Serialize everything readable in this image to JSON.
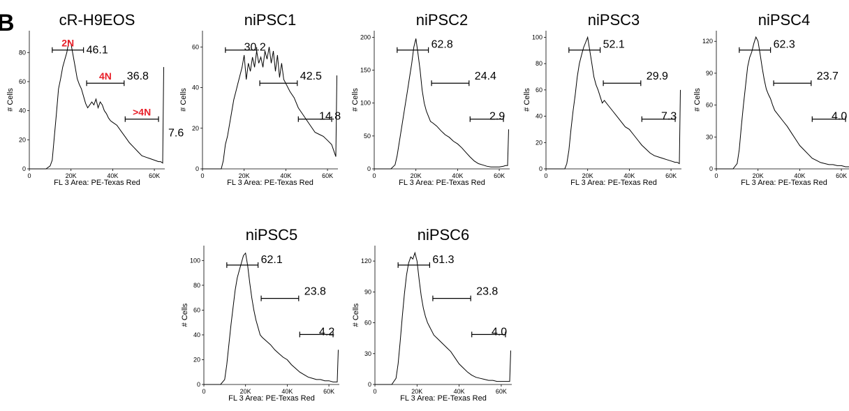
{
  "figure": {
    "panel_letter": "B",
    "label_color": "#e8202a",
    "line_color": "#000000"
  },
  "chart_data": [
    {
      "type": "line",
      "title": "cR-H9EOS",
      "xlabel": "FL 3 Area: PE-Texas Red",
      "ylabel": "# Cells",
      "xlim": [
        0,
        65000
      ],
      "ylim": [
        0,
        95
      ],
      "xticks": [
        {
          "v": 0,
          "t": "0"
        },
        {
          "v": 20000,
          "t": "20K"
        },
        {
          "v": 40000,
          "t": "40K"
        },
        {
          "v": 60000,
          "t": "60K"
        }
      ],
      "yticks": [
        {
          "v": 0,
          "t": "0"
        },
        {
          "v": 20,
          "t": "20"
        },
        {
          "v": 40,
          "t": "40"
        },
        {
          "v": 60,
          "t": "60"
        },
        {
          "v": 80,
          "t": "80"
        }
      ],
      "x": [
        0,
        8000,
        10000,
        11000,
        12000,
        13000,
        14000,
        15000,
        16000,
        17000,
        18000,
        19000,
        20000,
        21000,
        22000,
        23000,
        24000,
        25000,
        26000,
        27000,
        28000,
        29000,
        30000,
        31000,
        32000,
        33000,
        34000,
        35000,
        36000,
        37000,
        38000,
        39000,
        40000,
        42000,
        44000,
        46000,
        48000,
        50000,
        52000,
        54000,
        56000,
        58000,
        60000,
        62000,
        63000,
        64000,
        64500
      ],
      "y": [
        0,
        0,
        2,
        6,
        22,
        38,
        55,
        62,
        70,
        75,
        80,
        88,
        86,
        78,
        70,
        62,
        58,
        55,
        50,
        45,
        42,
        44,
        46,
        44,
        48,
        42,
        46,
        44,
        40,
        38,
        35,
        33,
        32,
        30,
        26,
        22,
        18,
        15,
        12,
        9,
        8,
        7,
        6,
        5,
        5,
        4,
        70
      ],
      "gates": [
        {
          "name": "2N",
          "value": "46.1",
          "range": [
            11000,
            26000
          ],
          "level": 81
        },
        {
          "name": "4N",
          "value": "36.8",
          "range": [
            27500,
            45500
          ],
          "level": 57
        },
        {
          "name": ">4N",
          "value": "7.6",
          "range": [
            46000,
            62000
          ],
          "level": 33
        }
      ]
    },
    {
      "type": "line",
      "title": "niPSC1",
      "xlabel": "FL 3 Area: PE-Texas Red",
      "ylabel": "# Cells",
      "xlim": [
        0,
        65000
      ],
      "ylim": [
        0,
        68
      ],
      "xticks": [
        {
          "v": 0,
          "t": "0"
        },
        {
          "v": 20000,
          "t": "20K"
        },
        {
          "v": 40000,
          "t": "40K"
        },
        {
          "v": 60000,
          "t": "60K"
        }
      ],
      "yticks": [
        {
          "v": 0,
          "t": "0"
        },
        {
          "v": 20,
          "t": "20"
        },
        {
          "v": 40,
          "t": "40"
        },
        {
          "v": 60,
          "t": "60"
        }
      ],
      "x": [
        0,
        9000,
        10000,
        11000,
        12000,
        13000,
        14000,
        15000,
        16000,
        17000,
        18000,
        19000,
        20000,
        21000,
        22000,
        23000,
        24000,
        25000,
        26000,
        27000,
        28000,
        29000,
        30000,
        31000,
        32000,
        33000,
        34000,
        35000,
        36000,
        37000,
        38000,
        39000,
        40000,
        42000,
        44000,
        46000,
        48000,
        50000,
        52000,
        54000,
        56000,
        58000,
        60000,
        62000,
        63000,
        64000,
        64500
      ],
      "y": [
        0,
        0,
        4,
        12,
        16,
        22,
        28,
        34,
        38,
        42,
        46,
        50,
        56,
        44,
        52,
        48,
        55,
        50,
        58,
        52,
        55,
        50,
        58,
        54,
        60,
        52,
        58,
        48,
        56,
        45,
        52,
        44,
        42,
        38,
        35,
        30,
        27,
        24,
        21,
        18,
        17,
        16,
        14,
        12,
        9,
        6,
        46
      ]
    },
    {
      "type": "line",
      "title": "niPSC2",
      "xlabel": "FL 3 Area: PE-Texas Red",
      "ylabel": "# Cells",
      "xlim": [
        0,
        65000
      ],
      "ylim": [
        0,
        210
      ],
      "xticks": [
        {
          "v": 0,
          "t": "0"
        },
        {
          "v": 20000,
          "t": "20K"
        },
        {
          "v": 40000,
          "t": "40K"
        },
        {
          "v": 60000,
          "t": "60K"
        }
      ],
      "yticks": [
        {
          "v": 0,
          "t": "0"
        },
        {
          "v": 50,
          "t": "50"
        },
        {
          "v": 100,
          "t": "100"
        },
        {
          "v": 150,
          "t": "150"
        },
        {
          "v": 200,
          "t": "200"
        }
      ],
      "x": [
        0,
        8000,
        10000,
        11000,
        12000,
        13000,
        14000,
        15000,
        16000,
        17000,
        18000,
        19000,
        20000,
        21000,
        22000,
        23000,
        24000,
        25000,
        26000,
        27000,
        28000,
        30000,
        32000,
        34000,
        36000,
        38000,
        40000,
        42000,
        44000,
        46000,
        48000,
        50000,
        52000,
        54000,
        56000,
        58000,
        60000,
        62000,
        63000,
        64000,
        64500
      ],
      "y": [
        0,
        0,
        6,
        20,
        40,
        60,
        80,
        100,
        120,
        140,
        160,
        185,
        198,
        175,
        150,
        120,
        100,
        88,
        80,
        72,
        70,
        65,
        58,
        52,
        48,
        42,
        38,
        32,
        25,
        18,
        12,
        8,
        6,
        4,
        3,
        3,
        3,
        4,
        5,
        5,
        60
      ]
    },
    {
      "type": "line",
      "title": "niPSC3",
      "xlabel": "FL 3 Area: PE-Texas Red",
      "ylabel": "# Cells",
      "xlim": [
        0,
        65000
      ],
      "ylim": [
        0,
        105
      ],
      "xticks": [
        {
          "v": 0,
          "t": "0"
        },
        {
          "v": 20000,
          "t": "20K"
        },
        {
          "v": 40000,
          "t": "40K"
        },
        {
          "v": 60000,
          "t": "60K"
        }
      ],
      "yticks": [
        {
          "v": 0,
          "t": "0"
        },
        {
          "v": 20,
          "t": "20"
        },
        {
          "v": 40,
          "t": "40"
        },
        {
          "v": 60,
          "t": "60"
        },
        {
          "v": 80,
          "t": "80"
        },
        {
          "v": 100,
          "t": "100"
        }
      ],
      "x": [
        0,
        9000,
        10000,
        11000,
        12000,
        13000,
        14000,
        15000,
        16000,
        17000,
        18000,
        19000,
        20000,
        21000,
        22000,
        23000,
        24000,
        25000,
        26000,
        27000,
        28000,
        30000,
        32000,
        34000,
        36000,
        38000,
        40000,
        42000,
        44000,
        46000,
        48000,
        50000,
        52000,
        54000,
        56000,
        58000,
        60000,
        62000,
        63000,
        64000,
        64500
      ],
      "y": [
        0,
        0,
        4,
        14,
        30,
        44,
        56,
        70,
        80,
        86,
        92,
        96,
        100,
        90,
        80,
        70,
        64,
        60,
        55,
        50,
        52,
        48,
        44,
        40,
        36,
        32,
        30,
        26,
        22,
        18,
        15,
        12,
        10,
        9,
        8,
        7,
        6,
        5,
        5,
        4,
        60
      ]
    },
    {
      "type": "line",
      "title": "niPSC4",
      "xlabel": "FL 3 Area: PE-Texas Red",
      "ylabel": "# Cells",
      "xlim": [
        0,
        65000
      ],
      "ylim": [
        0,
        130
      ],
      "xticks": [
        {
          "v": 0,
          "t": "0"
        },
        {
          "v": 20000,
          "t": "20K"
        },
        {
          "v": 40000,
          "t": "40K"
        },
        {
          "v": 60000,
          "t": "60K"
        }
      ],
      "yticks": [
        {
          "v": 0,
          "t": "0"
        },
        {
          "v": 30,
          "t": "30"
        },
        {
          "v": 60,
          "t": "60"
        },
        {
          "v": 90,
          "t": "90"
        },
        {
          "v": 120,
          "t": "120"
        }
      ],
      "x": [
        0,
        8000,
        10000,
        11000,
        12000,
        13000,
        14000,
        15000,
        16000,
        17000,
        18000,
        19000,
        20000,
        21000,
        22000,
        23000,
        24000,
        25000,
        26000,
        27000,
        28000,
        30000,
        32000,
        34000,
        36000,
        38000,
        40000,
        42000,
        44000,
        46000,
        48000,
        50000,
        52000,
        54000,
        56000,
        58000,
        60000,
        62000,
        63000,
        64000,
        64500
      ],
      "y": [
        0,
        0,
        5,
        18,
        40,
        60,
        78,
        96,
        105,
        110,
        118,
        124,
        120,
        108,
        95,
        84,
        75,
        70,
        66,
        60,
        55,
        50,
        45,
        40,
        34,
        28,
        22,
        18,
        14,
        10,
        8,
        6,
        5,
        4,
        4,
        3,
        3,
        2,
        2,
        2,
        2
      ]
    },
    {
      "type": "line",
      "title": "niPSC5",
      "xlabel": "FL 3 Area: PE-Texas Red",
      "ylabel": "# Cells",
      "xlim": [
        0,
        65000
      ],
      "ylim": [
        0,
        112
      ],
      "xticks": [
        {
          "v": 0,
          "t": "0"
        },
        {
          "v": 20000,
          "t": "20K"
        },
        {
          "v": 40000,
          "t": "40K"
        },
        {
          "v": 60000,
          "t": "60K"
        }
      ],
      "yticks": [
        {
          "v": 0,
          "t": "0"
        },
        {
          "v": 20,
          "t": "20"
        },
        {
          "v": 40,
          "t": "40"
        },
        {
          "v": 60,
          "t": "60"
        },
        {
          "v": 80,
          "t": "80"
        },
        {
          "v": 100,
          "t": "100"
        }
      ],
      "x": [
        0,
        8000,
        10000,
        11000,
        12000,
        13000,
        14000,
        15000,
        16000,
        17000,
        18000,
        19000,
        20000,
        21000,
        22000,
        23000,
        24000,
        25000,
        26000,
        27000,
        28000,
        30000,
        32000,
        34000,
        36000,
        38000,
        40000,
        42000,
        44000,
        46000,
        48000,
        50000,
        52000,
        54000,
        56000,
        58000,
        60000,
        62000,
        63000,
        64000,
        64500
      ],
      "y": [
        0,
        0,
        4,
        16,
        32,
        48,
        62,
        76,
        86,
        92,
        98,
        104,
        106,
        96,
        82,
        70,
        60,
        52,
        46,
        40,
        38,
        35,
        32,
        28,
        25,
        22,
        20,
        16,
        13,
        10,
        8,
        6,
        5,
        4,
        4,
        3,
        3,
        2,
        2,
        2,
        28
      ]
    },
    {
      "type": "line",
      "title": "niPSC6",
      "xlabel": "FL 3 Area: PE-Texas Red",
      "ylabel": "# Cells",
      "xlim": [
        0,
        65000
      ],
      "ylim": [
        0,
        135
      ],
      "xticks": [
        {
          "v": 0,
          "t": "0"
        },
        {
          "v": 20000,
          "t": "20K"
        },
        {
          "v": 40000,
          "t": "40K"
        },
        {
          "v": 60000,
          "t": "60K"
        }
      ],
      "yticks": [
        {
          "v": 0,
          "t": "0"
        },
        {
          "v": 30,
          "t": "30"
        },
        {
          "v": 60,
          "t": "60"
        },
        {
          "v": 90,
          "t": "90"
        },
        {
          "v": 120,
          "t": "120"
        }
      ],
      "x": [
        0,
        8000,
        10000,
        11000,
        12000,
        13000,
        14000,
        15000,
        16000,
        17000,
        18000,
        19000,
        20000,
        21000,
        22000,
        23000,
        24000,
        25000,
        26000,
        27000,
        28000,
        30000,
        32000,
        34000,
        36000,
        38000,
        40000,
        42000,
        44000,
        46000,
        48000,
        50000,
        52000,
        54000,
        56000,
        58000,
        60000,
        62000,
        63000,
        64000,
        64500
      ],
      "y": [
        0,
        0,
        6,
        20,
        42,
        66,
        88,
        106,
        118,
        124,
        122,
        128,
        120,
        102,
        86,
        74,
        66,
        60,
        56,
        52,
        48,
        44,
        40,
        36,
        32,
        26,
        20,
        16,
        12,
        9,
        7,
        6,
        5,
        4,
        4,
        3,
        3,
        3,
        3,
        3,
        33
      ]
    }
  ],
  "gate_values": [
    [
      "46.1",
      "36.8",
      "7.6"
    ],
    [
      "30.2",
      "42.5",
      "14.8"
    ],
    [
      "62.8",
      "24.4",
      "2.9"
    ],
    [
      "52.1",
      "29.9",
      "7.3"
    ],
    [
      "62.3",
      "23.7",
      "4.0"
    ],
    [
      "62.1",
      "23.8",
      "4.2"
    ],
    [
      "61.3",
      "23.8",
      "4.0"
    ]
  ]
}
